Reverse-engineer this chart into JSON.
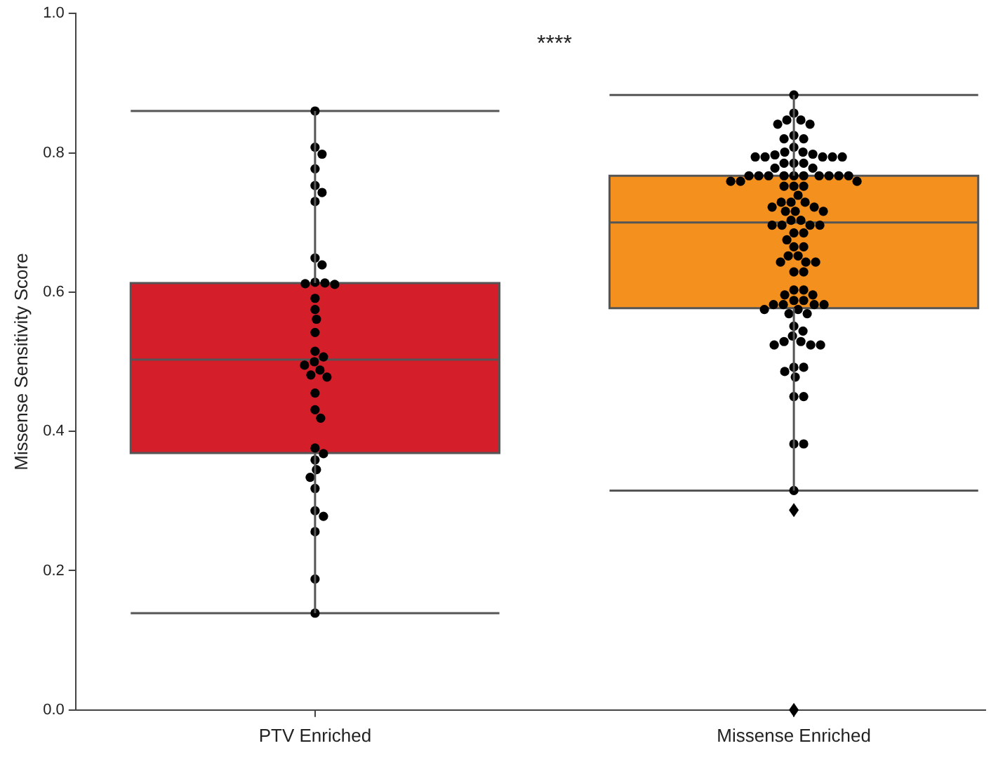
{
  "chart_data": {
    "type": "box",
    "ylabel": "Missense Sensitivity Score",
    "categories": [
      "PTV Enriched",
      "Missense Enriched"
    ],
    "ylim": [
      0,
      1
    ],
    "yticks": [
      {
        "value": 0,
        "label": "0.0"
      },
      {
        "value": 0.2,
        "label": "0.2"
      },
      {
        "value": 0.4,
        "label": "0.4"
      },
      {
        "value": 0.6,
        "label": "0.6"
      },
      {
        "value": 0.8,
        "label": "0.8"
      },
      {
        "value": 1,
        "label": "1.0"
      }
    ],
    "grid": false,
    "legend": false,
    "annotations": [
      "****"
    ],
    "series": [
      {
        "type": "box",
        "colors": [
          "#d41f2a",
          "#f4901e"
        ],
        "boxes": [
          {
            "low": 0.139,
            "q1": 0.369,
            "median": 0.503,
            "q3": 0.613,
            "high": 0.86
          },
          {
            "low": 0.315,
            "q1": 0.577,
            "median": 0.7,
            "q3": 0.767,
            "high": 0.883,
            "outliers": [
              0.287,
              0.0
            ]
          }
        ]
      },
      {
        "type": "scatter",
        "color": "#000000",
        "marker": "circle",
        "x": [
          "PTV Enriched",
          "PTV Enriched",
          "PTV Enriched",
          "PTV Enriched",
          "PTV Enriched",
          "PTV Enriched",
          "PTV Enriched",
          "PTV Enriched",
          "PTV Enriched",
          "PTV Enriched",
          "PTV Enriched",
          "PTV Enriched",
          "PTV Enriched",
          "PTV Enriched",
          "PTV Enriched",
          "PTV Enriched",
          "PTV Enriched",
          "PTV Enriched",
          "PTV Enriched",
          "PTV Enriched",
          "PTV Enriched",
          "PTV Enriched",
          "PTV Enriched",
          "PTV Enriched",
          "PTV Enriched",
          "PTV Enriched",
          "PTV Enriched",
          "PTV Enriched",
          "PTV Enriched",
          "PTV Enriched",
          "PTV Enriched",
          "PTV Enriched",
          "PTV Enriched",
          "PTV Enriched",
          "PTV Enriched",
          "PTV Enriched",
          "PTV Enriched",
          "PTV Enriched"
        ],
        "values": [
          0.86,
          0.808,
          0.798,
          0.777,
          0.753,
          0.743,
          0.73,
          0.649,
          0.639,
          0.614,
          0.612,
          0.611,
          0.613,
          0.591,
          0.575,
          0.561,
          0.542,
          0.515,
          0.507,
          0.5,
          0.495,
          0.488,
          0.481,
          0.478,
          0.455,
          0.431,
          0.419,
          0.376,
          0.368,
          0.359,
          0.345,
          0.334,
          0.318,
          0.286,
          0.278,
          0.256,
          0.188,
          0.139
        ]
      },
      {
        "type": "scatter",
        "color": "#000000",
        "marker": "circle",
        "x": [
          "Missense Enriched",
          "Missense Enriched",
          "Missense Enriched",
          "Missense Enriched",
          "Missense Enriched",
          "Missense Enriched",
          "Missense Enriched",
          "Missense Enriched",
          "Missense Enriched",
          "Missense Enriched",
          "Missense Enriched",
          "Missense Enriched",
          "Missense Enriched",
          "Missense Enriched",
          "Missense Enriched",
          "Missense Enriched",
          "Missense Enriched",
          "Missense Enriched",
          "Missense Enriched",
          "Missense Enriched",
          "Missense Enriched",
          "Missense Enriched",
          "Missense Enriched",
          "Missense Enriched",
          "Missense Enriched",
          "Missense Enriched",
          "Missense Enriched",
          "Missense Enriched",
          "Missense Enriched",
          "Missense Enriched",
          "Missense Enriched",
          "Missense Enriched",
          "Missense Enriched",
          "Missense Enriched",
          "Missense Enriched",
          "Missense Enriched",
          "Missense Enriched",
          "Missense Enriched",
          "Missense Enriched",
          "Missense Enriched",
          "Missense Enriched",
          "Missense Enriched",
          "Missense Enriched",
          "Missense Enriched",
          "Missense Enriched",
          "Missense Enriched",
          "Missense Enriched",
          "Missense Enriched",
          "Missense Enriched",
          "Missense Enriched",
          "Missense Enriched",
          "Missense Enriched",
          "Missense Enriched",
          "Missense Enriched",
          "Missense Enriched",
          "Missense Enriched",
          "Missense Enriched",
          "Missense Enriched",
          "Missense Enriched",
          "Missense Enriched",
          "Missense Enriched",
          "Missense Enriched",
          "Missense Enriched",
          "Missense Enriched",
          "Missense Enriched",
          "Missense Enriched",
          "Missense Enriched",
          "Missense Enriched",
          "Missense Enriched",
          "Missense Enriched",
          "Missense Enriched",
          "Missense Enriched",
          "Missense Enriched",
          "Missense Enriched",
          "Missense Enriched",
          "Missense Enriched",
          "Missense Enriched",
          "Missense Enriched",
          "Missense Enriched",
          "Missense Enriched",
          "Missense Enriched",
          "Missense Enriched",
          "Missense Enriched",
          "Missense Enriched",
          "Missense Enriched",
          "Missense Enriched",
          "Missense Enriched",
          "Missense Enriched",
          "Missense Enriched",
          "Missense Enriched",
          "Missense Enriched",
          "Missense Enriched",
          "Missense Enriched",
          "Missense Enriched",
          "Missense Enriched",
          "Missense Enriched",
          "Missense Enriched",
          "Missense Enriched"
        ],
        "values": [
          0.883,
          0.857,
          0.847,
          0.847,
          0.841,
          0.841,
          0.825,
          0.82,
          0.82,
          0.808,
          0.801,
          0.797,
          0.801,
          0.798,
          0.794,
          0.794,
          0.794,
          0.794,
          0.794,
          0.785,
          0.785,
          0.785,
          0.778,
          0.778,
          0.767,
          0.767,
          0.767,
          0.767,
          0.767,
          0.767,
          0.767,
          0.767,
          0.767,
          0.767,
          0.759,
          0.759,
          0.759,
          0.752,
          0.752,
          0.752,
          0.739,
          0.729,
          0.729,
          0.729,
          0.722,
          0.722,
          0.716,
          0.716,
          0.716,
          0.703,
          0.703,
          0.696,
          0.696,
          0.696,
          0.696,
          0.685,
          0.685,
          0.675,
          0.665,
          0.665,
          0.652,
          0.652,
          0.643,
          0.643,
          0.643,
          0.629,
          0.629,
          0.603,
          0.603,
          0.596,
          0.596,
          0.588,
          0.588,
          0.582,
          0.582,
          0.582,
          0.582,
          0.575,
          0.575,
          0.569,
          0.569,
          0.551,
          0.544,
          0.537,
          0.529,
          0.529,
          0.524,
          0.524,
          0.524,
          0.492,
          0.492,
          0.486,
          0.478,
          0.45,
          0.45,
          0.382,
          0.382,
          0.315
        ]
      }
    ]
  }
}
